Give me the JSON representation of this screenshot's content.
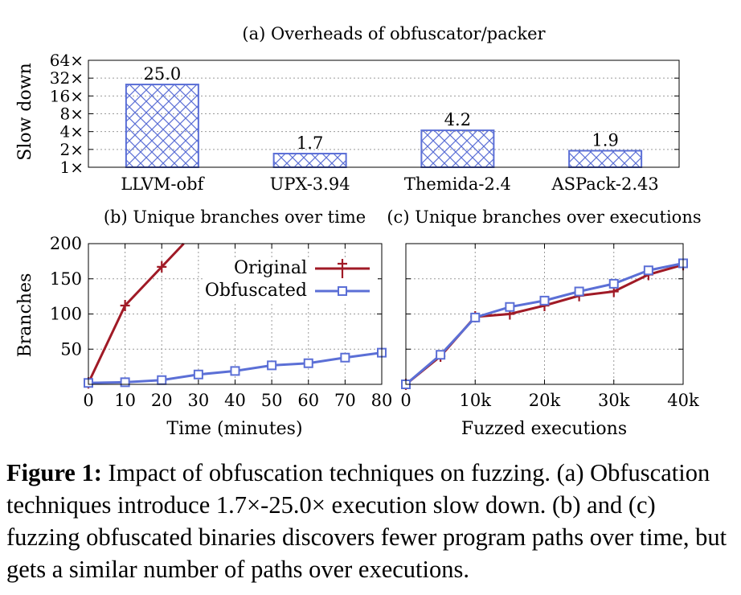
{
  "chart_data": [
    {
      "type": "bar",
      "title": "(a) Overheads of obfuscator/packer",
      "ylabel": "Slow down",
      "yscale": "log2",
      "ylim": [
        1,
        64
      ],
      "yticks": [
        "1×",
        "2×",
        "4×",
        "8×",
        "16×",
        "32×",
        "64×"
      ],
      "categories": [
        "LLVM-obf",
        "UPX-3.94",
        "Themida-2.4",
        "ASPack-2.43"
      ],
      "values": [
        25.0,
        1.7,
        4.2,
        1.9
      ],
      "data_labels": [
        "25.0",
        "1.7",
        "4.2",
        "1.9"
      ],
      "grid": true,
      "bar_color": "#5b6fd6",
      "bar_fill": "crosshatch"
    },
    {
      "type": "line",
      "title": "(b) Unique branches over time",
      "xlabel": "Time (minutes)",
      "ylabel": "Branches",
      "xlim": [
        0,
        80
      ],
      "ylim": [
        0,
        200
      ],
      "xticks": [
        "0",
        "10",
        "20",
        "30",
        "40",
        "50",
        "60",
        "70",
        "80"
      ],
      "yticks": [
        "50",
        "100",
        "150",
        "200"
      ],
      "grid": true,
      "legend": "top-right",
      "series": [
        {
          "name": "Original",
          "color": "#a01a26",
          "marker": "plus",
          "x": [
            0,
            10,
            20,
            26
          ],
          "y": [
            2,
            112,
            167,
            200
          ]
        },
        {
          "name": "Obfuscated",
          "color": "#5b6fd6",
          "marker": "square",
          "x": [
            0,
            10,
            20,
            30,
            40,
            50,
            60,
            70,
            80
          ],
          "y": [
            2,
            3,
            6,
            14,
            19,
            27,
            30,
            38,
            45
          ]
        }
      ]
    },
    {
      "type": "line",
      "title": "(c) Unique branches over executions",
      "xlabel": "Fuzzed executions",
      "xlim": [
        0,
        40000
      ],
      "ylim": [
        0,
        200
      ],
      "xticks": [
        "0",
        "10k",
        "20k",
        "30k",
        "40k"
      ],
      "grid": true,
      "series": [
        {
          "name": "Original",
          "color": "#a01a26",
          "marker": "plus",
          "x": [
            0,
            5000,
            10000,
            15000,
            20000,
            25000,
            30000,
            35000,
            40000
          ],
          "y": [
            0,
            40,
            96,
            100,
            112,
            126,
            132,
            156,
            170
          ]
        },
        {
          "name": "Obfuscated",
          "color": "#5b6fd6",
          "marker": "square",
          "x": [
            0,
            5000,
            10000,
            15000,
            20000,
            25000,
            30000,
            35000,
            40000
          ],
          "y": [
            0,
            42,
            95,
            110,
            119,
            132,
            143,
            162,
            172
          ]
        }
      ]
    }
  ],
  "caption": {
    "label": "Figure 1:",
    "text": " Impact of obfuscation techniques on fuzzing. (a) Obfuscation techniques introduce 1.7×-25.0× execution slow down. (b) and (c) fuzzing obfuscated binaries discovers fewer program paths over time, but gets a similar number of paths over executions."
  }
}
